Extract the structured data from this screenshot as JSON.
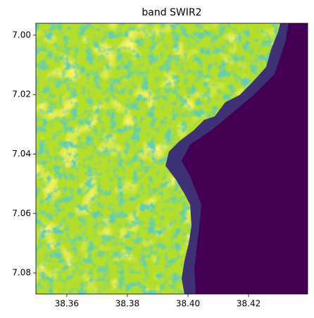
{
  "chart_data": {
    "type": "image",
    "title": "band SWIR2",
    "xlim": [
      38.3498,
      38.4395
    ],
    "ylim": [
      7.0871,
      6.996
    ],
    "xticks": [
      {
        "value": 38.36,
        "label": "38.36"
      },
      {
        "value": 38.38,
        "label": "38.38"
      },
      {
        "value": 38.4,
        "label": "38.40"
      },
      {
        "value": 38.42,
        "label": "38.42"
      }
    ],
    "yticks": [
      {
        "value": 7.0,
        "label": "7.00"
      },
      {
        "value": 7.02,
        "label": "7.02"
      },
      {
        "value": 7.04,
        "label": "7.04"
      },
      {
        "value": 7.06,
        "label": "7.06"
      },
      {
        "value": 7.08,
        "label": "7.08"
      }
    ]
  }
}
